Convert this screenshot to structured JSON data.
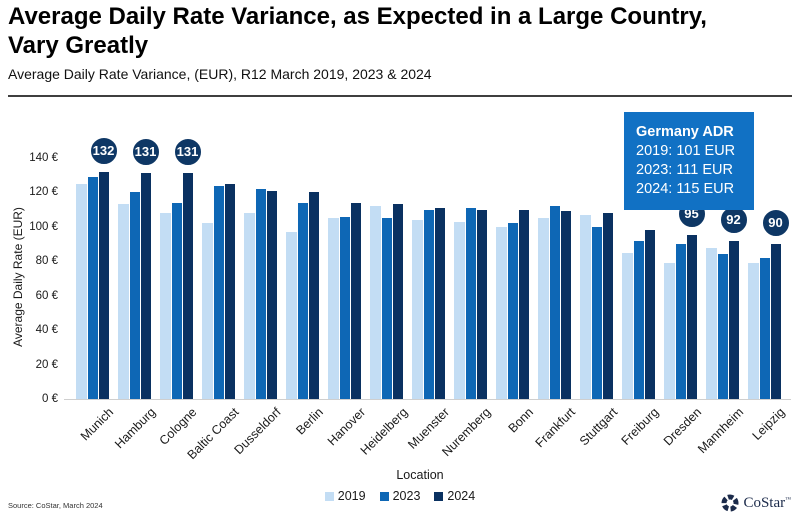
{
  "header": {
    "title": "Average Daily Rate Variance, as Expected in a Large Country, Vary Greatly",
    "subtitle": "Average Daily Rate Variance, (EUR), R12 March 2019, 2023 & 2024"
  },
  "chart_data": {
    "type": "bar",
    "title": "Average Daily Rate Variance, as Expected in a Large Country, Vary Greatly",
    "xlabel": "Location",
    "ylabel": "Average Daily Rate (EUR)",
    "ylim": [
      0,
      140
    ],
    "ytick_step": 20,
    "ytick_suffix": " €",
    "grid": false,
    "legend_position": "bottom",
    "categories": [
      "Munich",
      "Hamburg",
      "Cologne",
      "Baltic Coast",
      "Dusseldorf",
      "Berlin",
      "Hanover",
      "Heidelberg",
      "Muenster",
      "Nuremberg",
      "Bonn",
      "Frankfurt",
      "Stuttgart",
      "Freiburg",
      "Dresden",
      "Mannheim",
      "Leipzig"
    ],
    "series": [
      {
        "name": "2019",
        "color": "#c3ddf4",
        "values": [
          125,
          113,
          108,
          102,
          108,
          97,
          105,
          112,
          104,
          103,
          100,
          105,
          107,
          85,
          79,
          88,
          79
        ]
      },
      {
        "name": "2023",
        "color": "#0e67b5",
        "values": [
          129,
          120,
          114,
          124,
          122,
          114,
          106,
          105,
          110,
          111,
          102,
          112,
          100,
          92,
          90,
          84,
          82
        ]
      },
      {
        "name": "2024",
        "color": "#0a3161",
        "values": [
          132,
          131,
          131,
          125,
          121,
          120,
          114,
          113,
          111,
          110,
          110,
          109,
          108,
          98,
          95,
          92,
          90
        ]
      }
    ],
    "annotations": [
      {
        "category": "Munich",
        "series": "2024",
        "value": 132
      },
      {
        "category": "Hamburg",
        "series": "2024",
        "value": 131
      },
      {
        "category": "Cologne",
        "series": "2024",
        "value": 131
      },
      {
        "category": "Dresden",
        "series": "2024",
        "value": 95
      },
      {
        "category": "Mannheim",
        "series": "2024",
        "value": 92
      },
      {
        "category": "Leipzig",
        "series": "2024",
        "value": 90
      }
    ]
  },
  "callout": {
    "title": "Germany ADR",
    "lines": [
      "2019: 101 EUR",
      "2023: 111 EUR",
      "2024: 115 EUR"
    ],
    "bg_color": "#1171c4"
  },
  "footer": {
    "source": "Source: CoStar, March 2024",
    "logo_text": "CoStar",
    "logo_tm": "™"
  },
  "colors": {
    "series_2019": "#c3ddf4",
    "series_2023": "#0e67b5",
    "series_2024": "#0a3161",
    "annotation_circle": "#0e3765",
    "callout": "#1171c4"
  }
}
